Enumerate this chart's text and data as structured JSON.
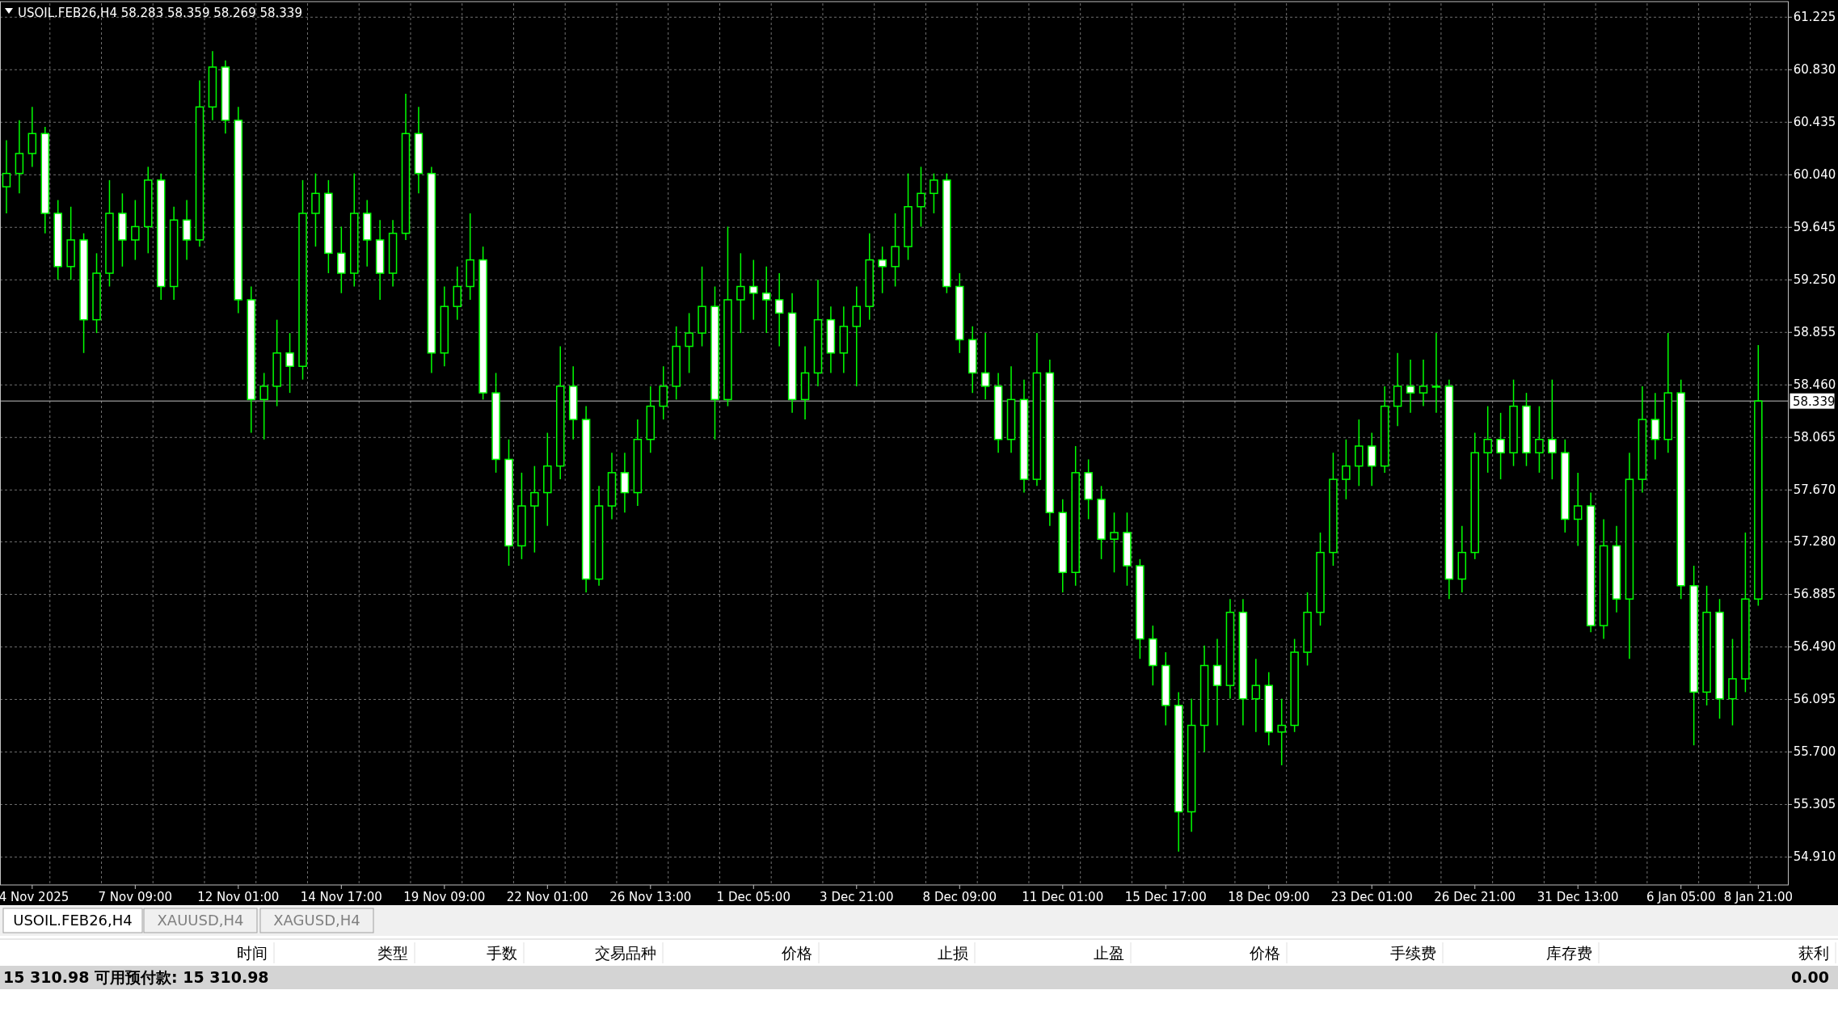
{
  "chart_data": {
    "type": "candlestick",
    "title": "USOIL.FEB26,H4 58.283 58.359 58.269 58.339",
    "categories": [
      null,
      null,
      "4 Nov 2025",
      null,
      null,
      null,
      null,
      null,
      null,
      null,
      "7 Nov 09:00",
      null,
      null,
      null,
      null,
      null,
      null,
      null,
      "12 Nov 01:00",
      null,
      null,
      null,
      null,
      null,
      null,
      null,
      "14 Nov 17:00",
      null,
      null,
      null,
      null,
      null,
      null,
      null,
      "19 Nov 09:00",
      null,
      null,
      null,
      null,
      null,
      null,
      null,
      "22 Nov 01:00",
      null,
      null,
      null,
      null,
      null,
      null,
      null,
      "26 Nov 13:00",
      null,
      null,
      null,
      null,
      null,
      null,
      null,
      "1 Dec 05:00",
      null,
      null,
      null,
      null,
      null,
      null,
      null,
      "3 Dec 21:00",
      null,
      null,
      null,
      null,
      null,
      null,
      null,
      "8 Dec 09:00",
      null,
      null,
      null,
      null,
      null,
      null,
      null,
      "11 Dec 01:00",
      null,
      null,
      null,
      null,
      null,
      null,
      null,
      "15 Dec 17:00",
      null,
      null,
      null,
      null,
      null,
      null,
      null,
      "18 Dec 09:00",
      null,
      null,
      null,
      null,
      null,
      null,
      null,
      "23 Dec 01:00",
      null,
      null,
      null,
      null,
      null,
      null,
      null,
      "26 Dec 21:00",
      null,
      null,
      null,
      null,
      null,
      null,
      null,
      "31 Dec 13:00",
      null,
      null,
      null,
      null,
      null,
      null,
      null,
      "6 Jan 05:00",
      null,
      null,
      null,
      null,
      null,
      "8 Jan 21:00"
    ],
    "series": [
      {
        "color": "#00ff00",
        "ohlc": [
          [
            59.95,
            60.3,
            59.75,
            60.05
          ],
          [
            60.05,
            60.45,
            59.9,
            60.2
          ],
          [
            60.2,
            60.55,
            60.1,
            60.35
          ],
          [
            60.35,
            60.4,
            59.6,
            59.75
          ],
          [
            59.75,
            59.85,
            59.25,
            59.35
          ],
          [
            59.35,
            59.8,
            59.25,
            59.55
          ],
          [
            59.55,
            59.6,
            58.7,
            58.95
          ],
          [
            58.95,
            59.45,
            58.85,
            59.3
          ],
          [
            59.3,
            60.0,
            59.2,
            59.75
          ],
          [
            59.75,
            59.9,
            59.35,
            59.55
          ],
          [
            59.55,
            59.85,
            59.4,
            59.65
          ],
          [
            59.65,
            60.1,
            59.45,
            60.0
          ],
          [
            60.0,
            60.05,
            59.1,
            59.2
          ],
          [
            59.2,
            59.8,
            59.1,
            59.7
          ],
          [
            59.7,
            59.85,
            59.4,
            59.55
          ],
          [
            59.55,
            60.75,
            59.5,
            60.55
          ],
          [
            60.55,
            60.97,
            60.45,
            60.85
          ],
          [
            60.85,
            60.9,
            60.35,
            60.45
          ],
          [
            60.45,
            60.55,
            59.0,
            59.1
          ],
          [
            59.1,
            59.2,
            58.1,
            58.35
          ],
          [
            58.35,
            58.55,
            58.05,
            58.45
          ],
          [
            58.45,
            58.95,
            58.3,
            58.7
          ],
          [
            58.7,
            58.85,
            58.4,
            58.6
          ],
          [
            58.6,
            60.0,
            58.5,
            59.75
          ],
          [
            59.75,
            60.05,
            59.5,
            59.9
          ],
          [
            59.9,
            60.0,
            59.3,
            59.45
          ],
          [
            59.45,
            59.65,
            59.15,
            59.3
          ],
          [
            59.3,
            60.05,
            59.2,
            59.75
          ],
          [
            59.75,
            59.85,
            59.35,
            59.55
          ],
          [
            59.55,
            59.7,
            59.1,
            59.3
          ],
          [
            59.3,
            59.7,
            59.2,
            59.6
          ],
          [
            59.6,
            60.65,
            59.55,
            60.35
          ],
          [
            60.35,
            60.55,
            59.9,
            60.05
          ],
          [
            60.05,
            60.1,
            58.55,
            58.7
          ],
          [
            58.7,
            59.2,
            58.6,
            59.05
          ],
          [
            59.05,
            59.35,
            58.95,
            59.2
          ],
          [
            59.2,
            59.75,
            59.1,
            59.4
          ],
          [
            59.4,
            59.5,
            58.35,
            58.4
          ],
          [
            58.4,
            58.55,
            57.8,
            57.9
          ],
          [
            57.9,
            58.05,
            57.1,
            57.25
          ],
          [
            57.25,
            57.8,
            57.15,
            57.55
          ],
          [
            57.55,
            57.85,
            57.2,
            57.65
          ],
          [
            57.65,
            58.1,
            57.4,
            57.85
          ],
          [
            57.85,
            58.75,
            57.75,
            58.45
          ],
          [
            58.45,
            58.6,
            58.05,
            58.2
          ],
          [
            58.2,
            58.3,
            56.9,
            57.0
          ],
          [
            57.0,
            57.7,
            56.95,
            57.55
          ],
          [
            57.55,
            57.95,
            57.45,
            57.8
          ],
          [
            57.8,
            57.95,
            57.5,
            57.65
          ],
          [
            57.65,
            58.2,
            57.55,
            58.05
          ],
          [
            58.05,
            58.45,
            57.95,
            58.3
          ],
          [
            58.3,
            58.6,
            58.2,
            58.45
          ],
          [
            58.45,
            58.9,
            58.35,
            58.75
          ],
          [
            58.75,
            59.0,
            58.55,
            58.85
          ],
          [
            58.85,
            59.35,
            58.75,
            59.05
          ],
          [
            59.05,
            59.2,
            58.05,
            58.35
          ],
          [
            58.35,
            59.65,
            58.3,
            59.1
          ],
          [
            59.1,
            59.45,
            58.85,
            59.2
          ],
          [
            59.2,
            59.4,
            58.95,
            59.15
          ],
          [
            59.15,
            59.35,
            58.85,
            59.1
          ],
          [
            59.1,
            59.3,
            58.75,
            59.0
          ],
          [
            59.0,
            59.15,
            58.25,
            58.35
          ],
          [
            58.35,
            58.75,
            58.2,
            58.55
          ],
          [
            58.55,
            59.25,
            58.45,
            58.95
          ],
          [
            58.95,
            59.05,
            58.55,
            58.7
          ],
          [
            58.7,
            59.05,
            58.55,
            58.9
          ],
          [
            58.9,
            59.2,
            58.45,
            59.05
          ],
          [
            59.05,
            59.6,
            58.95,
            59.4
          ],
          [
            59.4,
            59.5,
            59.15,
            59.35
          ],
          [
            59.35,
            59.75,
            59.2,
            59.5
          ],
          [
            59.5,
            60.05,
            59.4,
            59.8
          ],
          [
            59.8,
            60.1,
            59.65,
            59.9
          ],
          [
            59.9,
            60.05,
            59.75,
            60.0
          ],
          [
            60.0,
            60.05,
            59.15,
            59.2
          ],
          [
            59.2,
            59.3,
            58.7,
            58.8
          ],
          [
            58.8,
            58.9,
            58.4,
            58.55
          ],
          [
            58.55,
            58.85,
            58.35,
            58.45
          ],
          [
            58.45,
            58.55,
            57.95,
            58.05
          ],
          [
            58.05,
            58.6,
            57.95,
            58.35
          ],
          [
            58.35,
            58.5,
            57.65,
            57.75
          ],
          [
            57.75,
            58.85,
            57.7,
            58.55
          ],
          [
            58.55,
            58.65,
            57.4,
            57.5
          ],
          [
            57.5,
            57.6,
            56.9,
            57.05
          ],
          [
            57.05,
            58.0,
            56.95,
            57.8
          ],
          [
            57.8,
            57.9,
            57.45,
            57.6
          ],
          [
            57.6,
            57.7,
            57.15,
            57.3
          ],
          [
            57.3,
            57.5,
            57.05,
            57.35
          ],
          [
            57.35,
            57.5,
            56.95,
            57.1
          ],
          [
            57.1,
            57.15,
            56.4,
            56.55
          ],
          [
            56.55,
            56.65,
            56.2,
            56.35
          ],
          [
            56.35,
            56.45,
            55.9,
            56.05
          ],
          [
            56.05,
            56.15,
            54.95,
            55.25
          ],
          [
            55.25,
            56.1,
            55.1,
            55.9
          ],
          [
            55.9,
            56.5,
            55.7,
            56.35
          ],
          [
            56.35,
            56.55,
            55.9,
            56.2
          ],
          [
            56.2,
            56.85,
            56.1,
            56.75
          ],
          [
            56.75,
            56.85,
            55.9,
            56.1
          ],
          [
            56.1,
            56.4,
            55.85,
            56.2
          ],
          [
            56.2,
            56.3,
            55.75,
            55.85
          ],
          [
            55.85,
            56.1,
            55.6,
            55.9
          ],
          [
            55.9,
            56.55,
            55.85,
            56.45
          ],
          [
            56.45,
            56.9,
            56.35,
            56.75
          ],
          [
            56.75,
            57.35,
            56.65,
            57.2
          ],
          [
            57.2,
            57.95,
            57.1,
            57.75
          ],
          [
            57.75,
            58.05,
            57.6,
            57.85
          ],
          [
            57.85,
            58.2,
            57.7,
            58.0
          ],
          [
            58.0,
            58.1,
            57.7,
            57.85
          ],
          [
            57.85,
            58.45,
            57.8,
            58.3
          ],
          [
            58.3,
            58.7,
            58.15,
            58.45
          ],
          [
            58.45,
            58.65,
            58.25,
            58.4
          ],
          [
            58.4,
            58.65,
            58.3,
            58.45
          ],
          [
            58.45,
            58.85,
            58.25,
            58.45
          ],
          [
            58.45,
            58.5,
            56.85,
            57.0
          ],
          [
            57.0,
            57.4,
            56.9,
            57.2
          ],
          [
            57.2,
            58.1,
            57.15,
            57.95
          ],
          [
            57.95,
            58.3,
            57.8,
            58.05
          ],
          [
            58.05,
            58.25,
            57.75,
            57.95
          ],
          [
            57.95,
            58.5,
            57.85,
            58.3
          ],
          [
            58.3,
            58.4,
            57.85,
            57.95
          ],
          [
            57.95,
            58.3,
            57.8,
            58.05
          ],
          [
            58.05,
            58.5,
            57.75,
            57.95
          ],
          [
            57.95,
            58.05,
            57.35,
            57.45
          ],
          [
            57.45,
            57.8,
            57.25,
            57.55
          ],
          [
            57.55,
            57.65,
            56.6,
            56.65
          ],
          [
            56.65,
            57.45,
            56.55,
            57.25
          ],
          [
            57.25,
            57.4,
            56.75,
            56.85
          ],
          [
            56.85,
            57.95,
            56.4,
            57.75
          ],
          [
            57.75,
            58.45,
            57.65,
            58.2
          ],
          [
            58.2,
            58.4,
            57.9,
            58.05
          ],
          [
            58.05,
            58.85,
            57.95,
            58.4
          ],
          [
            58.4,
            58.5,
            56.85,
            56.95
          ],
          [
            56.95,
            57.1,
            55.75,
            56.15
          ],
          [
            56.15,
            56.95,
            56.05,
            56.75
          ],
          [
            56.75,
            56.85,
            55.95,
            56.1
          ],
          [
            56.1,
            56.55,
            55.9,
            56.25
          ],
          [
            56.25,
            57.35,
            56.15,
            56.85
          ],
          [
            56.85,
            58.76,
            56.8,
            58.339
          ]
        ]
      }
    ],
    "ylim": [
      54.7,
      61.33
    ],
    "yticks": [
      {
        "value": 54.91,
        "label": "54.910"
      },
      {
        "value": 55.305,
        "label": "55.305"
      },
      {
        "value": 55.7,
        "label": "55.700"
      },
      {
        "value": 56.095,
        "label": "56.095"
      },
      {
        "value": 56.49,
        "label": "56.490"
      },
      {
        "value": 56.885,
        "label": "56.885"
      },
      {
        "value": 57.28,
        "label": "57.280"
      },
      {
        "value": 57.67,
        "label": "57.670"
      },
      {
        "value": 58.065,
        "label": "58.065"
      },
      {
        "value": 58.46,
        "label": "58.460"
      },
      {
        "value": 58.855,
        "label": "58.855"
      },
      {
        "value": 59.25,
        "label": "59.250"
      },
      {
        "value": 59.645,
        "label": "59.645"
      },
      {
        "value": 60.04,
        "label": "60.040"
      },
      {
        "value": 60.435,
        "label": "60.435"
      },
      {
        "value": 60.83,
        "label": "60.830"
      },
      {
        "value": 61.225,
        "label": "61.225"
      }
    ],
    "grid": true,
    "ref_lines": [
      {
        "axis": "y",
        "value": 58.339,
        "label": "58.339",
        "color": "#c0c0c0"
      }
    ],
    "annotations": [
      "USOIL.FEB26,H4",
      "XAUUSD,H4",
      "XAGUSD,H4",
      "时间",
      "类型",
      "手数",
      "交易品种",
      "价格",
      "止损",
      "止盈",
      "价格",
      "手续费",
      "库存费",
      "获利",
      "15 310.98  可用预付款: 15 310.98",
      "0.00"
    ]
  }
}
